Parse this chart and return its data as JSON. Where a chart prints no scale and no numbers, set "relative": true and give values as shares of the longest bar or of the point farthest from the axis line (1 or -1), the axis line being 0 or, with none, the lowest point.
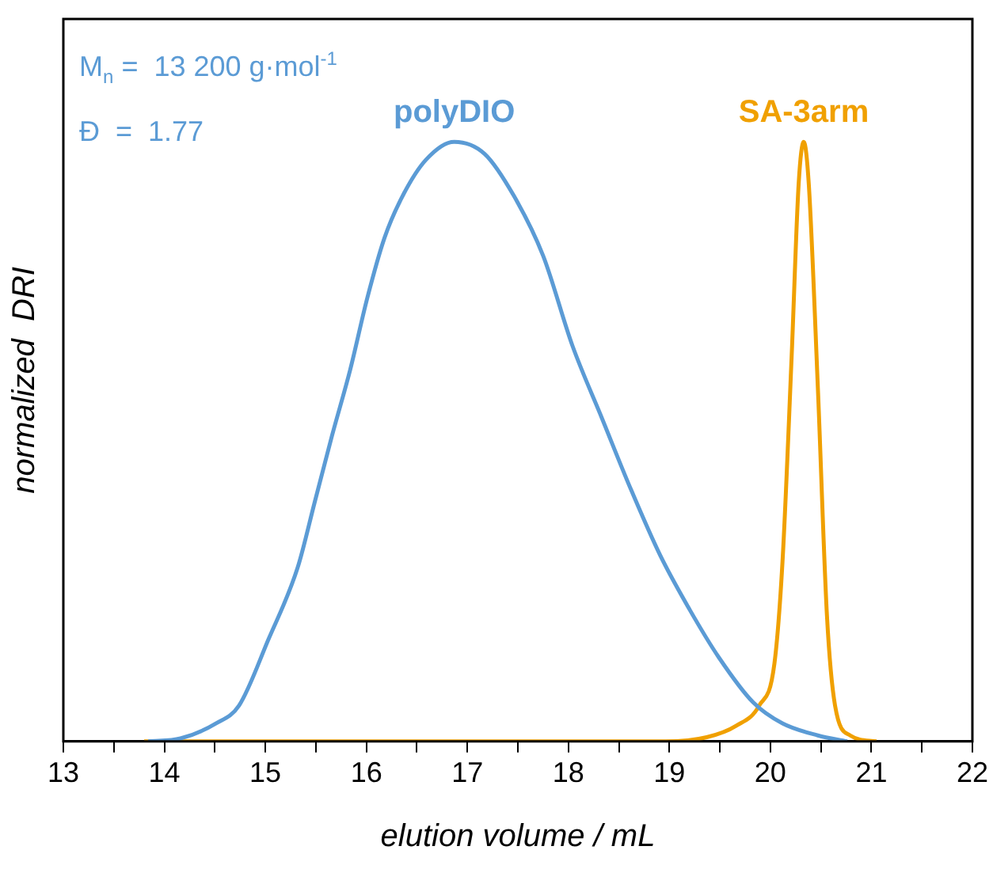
{
  "chart_data": {
    "type": "line",
    "xlabel": "elution volume / mL",
    "ylabel": "normalized  DRI",
    "relative": true,
    "annotations": [
      "M$_{n}$ =  13 200 g·mol$^{-1}$",
      "Đ  =  1.77"
    ],
    "xlim": [
      13,
      22
    ],
    "xticks": [
      13,
      {
        "value": 13.5,
        "label": null
      },
      14,
      {
        "value": 14.5,
        "label": null
      },
      15,
      {
        "value": 15.5,
        "label": null
      },
      16,
      {
        "value": 16.5,
        "label": null
      },
      17,
      {
        "value": 17.5,
        "label": null
      },
      18,
      {
        "value": 18.5,
        "label": null
      },
      19,
      {
        "value": 19.5,
        "label": null
      },
      20,
      {
        "value": 20.5,
        "label": null
      },
      21,
      {
        "value": 21.5,
        "label": null
      },
      22
    ],
    "grid": false,
    "legend": false,
    "marker": "none",
    "line_style": "solid",
    "series": [
      {
        "name": "polyDIO",
        "color": "#5b9bd5",
        "x": [
          13.84,
          14.16,
          14.51,
          14.74,
          15.03,
          15.32,
          15.49,
          15.66,
          15.84,
          16.01,
          16.18,
          16.36,
          16.59,
          16.87,
          17.17,
          17.46,
          17.75,
          18.04,
          18.33,
          18.62,
          18.91,
          19.2,
          19.49,
          19.83,
          20.12,
          20.47,
          20.76
        ],
        "values": [
          0,
          0.005,
          0.03,
          0.06,
          0.17,
          0.29,
          0.4,
          0.51,
          0.62,
          0.74,
          0.84,
          0.91,
          0.97,
          1,
          0.98,
          0.91,
          0.81,
          0.66,
          0.54,
          0.42,
          0.31,
          0.22,
          0.14,
          0.065,
          0.03,
          0.01,
          0
        ]
      },
      {
        "name": "SA-3arm",
        "color": "#f0a000",
        "x": [
          13.8,
          18.96,
          19.37,
          19.66,
          19.89,
          20.04,
          20.12,
          20.21,
          20.28,
          20.33,
          20.38,
          20.47,
          20.56,
          20.64,
          20.79,
          21.05
        ],
        "values": [
          0,
          0,
          0.007,
          0.026,
          0.06,
          0.13,
          0.3,
          0.64,
          0.93,
          1,
          0.93,
          0.59,
          0.21,
          0.06,
          0.01,
          0
        ]
      }
    ]
  }
}
